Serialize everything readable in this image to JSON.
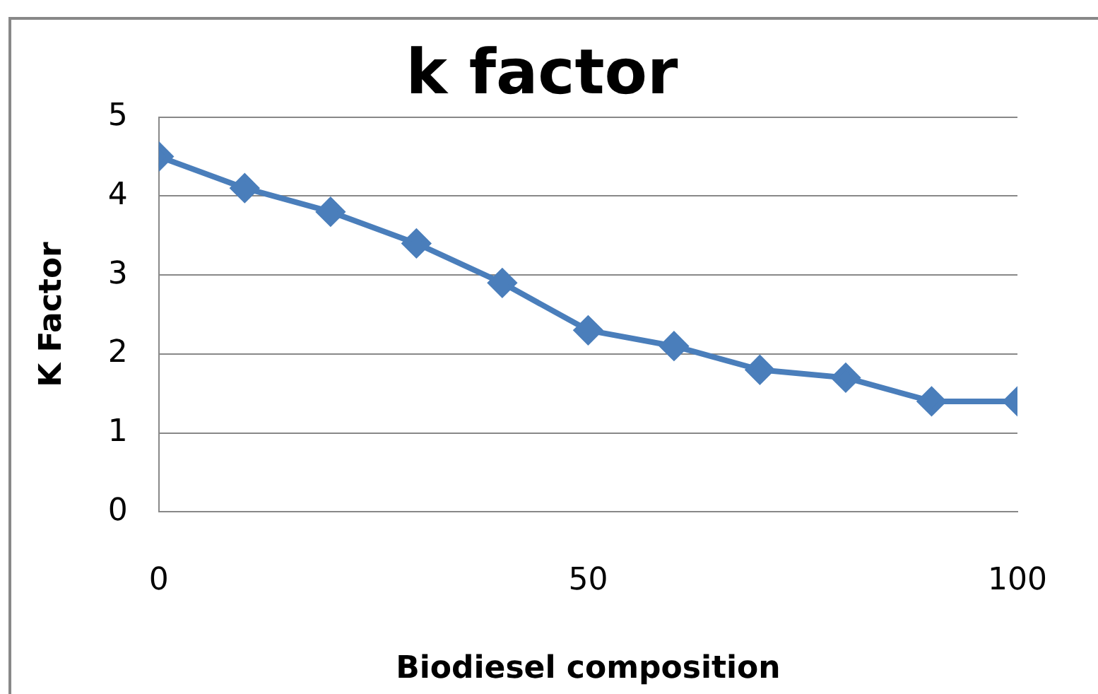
{
  "chart_data": {
    "type": "line",
    "title": "k factor",
    "xlabel": "Biodiesel composition",
    "ylabel": "K Factor",
    "x": [
      0,
      10,
      20,
      30,
      40,
      50,
      60,
      70,
      80,
      90,
      100
    ],
    "series": [
      {
        "color": "#4a7ebb",
        "values": [
          4.5,
          4.1,
          3.8,
          3.4,
          2.9,
          2.3,
          2.1,
          1.8,
          1.7,
          1.4,
          1.4
        ]
      }
    ],
    "xlim": [
      0,
      100
    ],
    "xticks": [
      0,
      50,
      100
    ],
    "ylim": [
      0,
      5
    ],
    "yticks": [
      0,
      1,
      2,
      3,
      4,
      5
    ],
    "grid": "y",
    "legend": false,
    "marker": "diamond",
    "line_style": "solid"
  }
}
